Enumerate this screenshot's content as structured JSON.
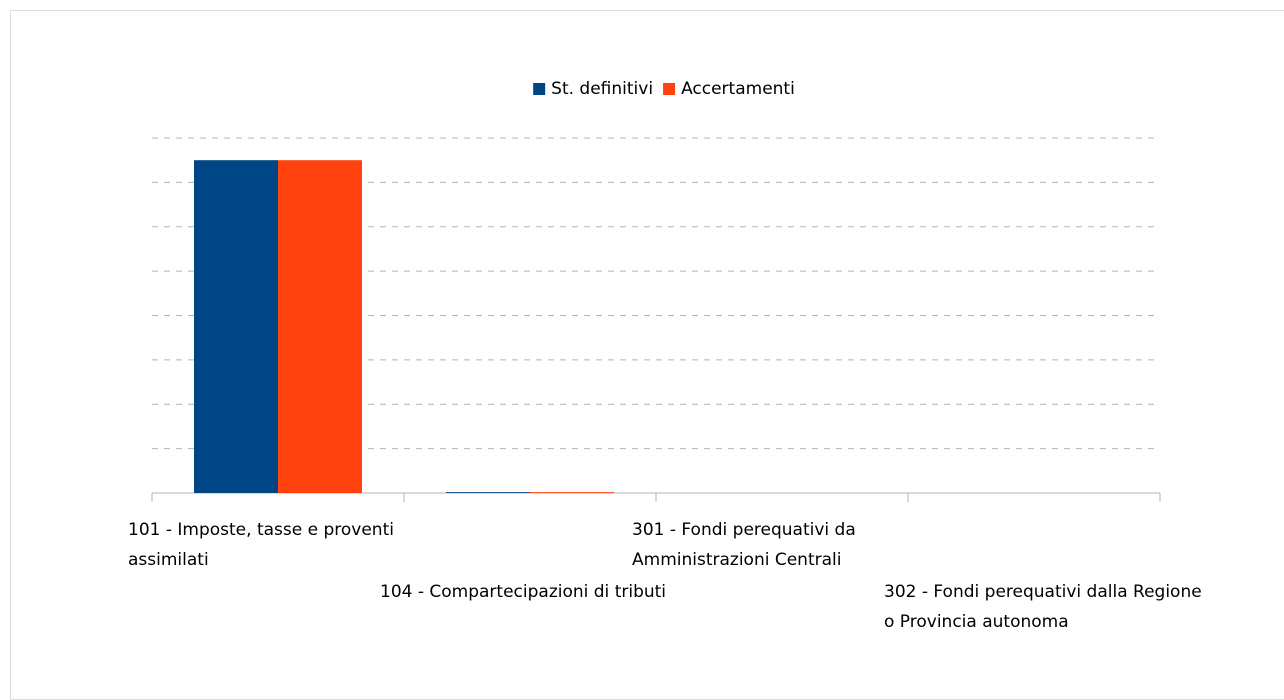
{
  "chart_data": {
    "type": "bar",
    "categories": [
      "101 - Imposte, tasse e proventi assimilati",
      "104 - Compartecipazioni di tributi",
      "301 - Fondi perequativi da Amministrazioni Centrali",
      "302 - Fondi perequativi dalla Regione o Provincia autonoma"
    ],
    "series": [
      {
        "name": "St. definitivi",
        "color": "#004586",
        "values": [
          7.5,
          0.02,
          0,
          0
        ]
      },
      {
        "name": "Accertamenti",
        "color": "#ff420e",
        "values": [
          7.5,
          0.02,
          0,
          0
        ]
      }
    ],
    "ylim": [
      0,
      8
    ],
    "yticks": [
      1,
      2,
      3,
      4,
      5,
      6,
      7,
      8
    ],
    "grid": true,
    "legend": "top"
  }
}
